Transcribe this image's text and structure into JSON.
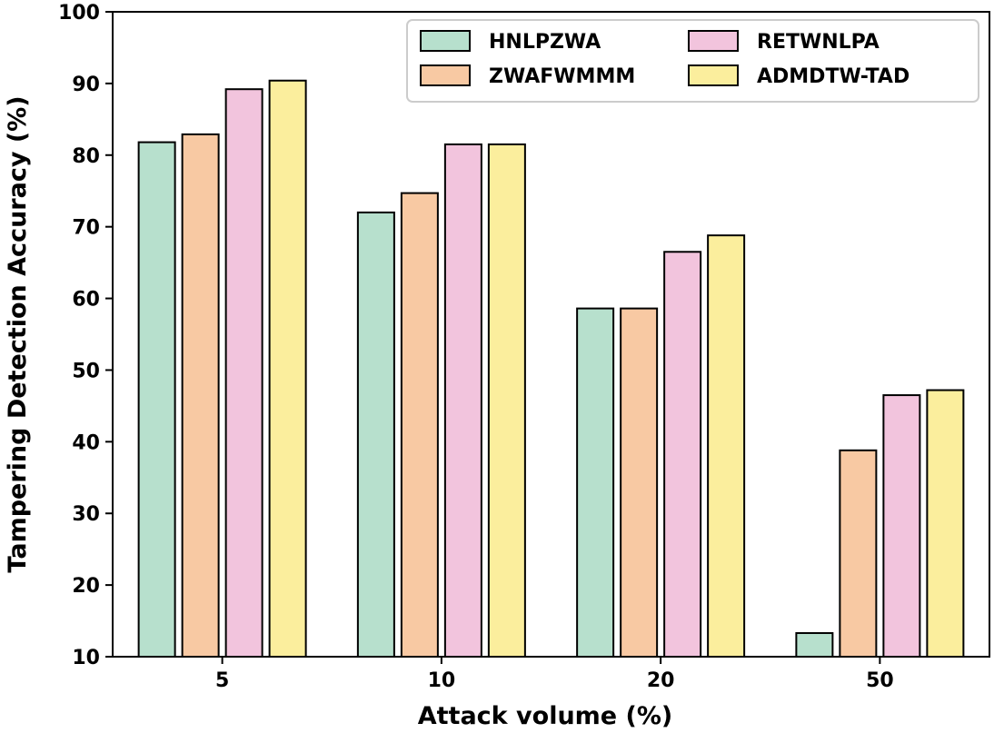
{
  "chart_data": {
    "type": "bar",
    "title": "",
    "xlabel": "Attack volume (%)",
    "ylabel": "Tampering Detection Accuracy (%)",
    "categories": [
      "5",
      "10",
      "20",
      "50"
    ],
    "ylim": [
      10,
      100
    ],
    "yticks": [
      10,
      20,
      30,
      40,
      50,
      60,
      70,
      80,
      90,
      100
    ],
    "grid": false,
    "legend_position": "top-right",
    "series": [
      {
        "name": "HNLPZWA",
        "color": "#b7e0cd",
        "values": [
          81.8,
          72.0,
          58.6,
          13.3
        ]
      },
      {
        "name": "ZWAFWMMM",
        "color": "#f8c9a3",
        "values": [
          82.9,
          74.7,
          58.6,
          38.8
        ]
      },
      {
        "name": "RETWNLPA",
        "color": "#f2c4dd",
        "values": [
          89.2,
          81.5,
          66.5,
          46.5
        ]
      },
      {
        "name": "ADMDTW-TAD",
        "color": "#fbee9d",
        "values": [
          90.4,
          81.5,
          68.8,
          47.2
        ]
      }
    ]
  }
}
